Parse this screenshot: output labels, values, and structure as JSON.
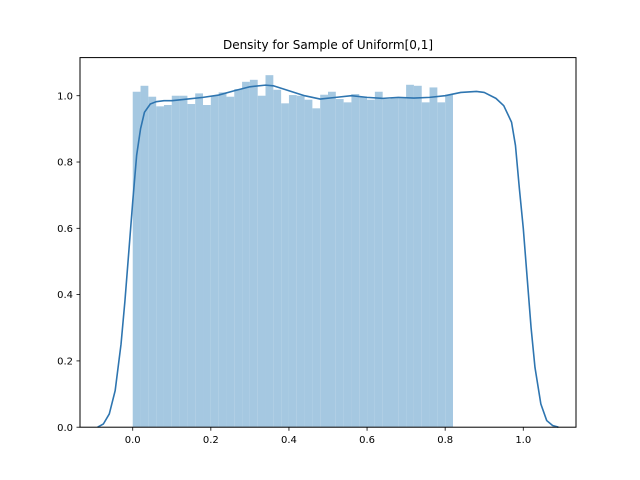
{
  "chart_data": {
    "type": "bar",
    "title": "Density for Sample of Uniform[0,1]",
    "xlabel": "",
    "ylabel": "",
    "xlim": [
      -0.135,
      1.135
    ],
    "ylim": [
      0,
      1.115
    ],
    "xticks": [
      0.0,
      0.2,
      0.4,
      0.6,
      0.8,
      1.0
    ],
    "xtick_labels": [
      "0.0",
      "0.2",
      "0.4",
      "0.6",
      "0.8",
      "1.0"
    ],
    "yticks": [
      0.0,
      0.2,
      0.4,
      0.6,
      0.8,
      1.0
    ],
    "ytick_labels": [
      "0.0",
      "0.2",
      "0.4",
      "0.6",
      "0.8",
      "1.0"
    ],
    "grid": false,
    "legend": "none",
    "histogram": {
      "bin_start": 0.0,
      "bin_width": 0.02,
      "color": "#a5c8e1",
      "values": [
        1.012,
        1.03,
        0.997,
        0.968,
        0.972,
        1.0,
        1.0,
        0.975,
        1.007,
        0.972,
        1.0,
        1.01,
        0.997,
        1.02,
        1.042,
        1.048,
        1.0,
        1.062,
        1.018,
        0.977,
        1.002,
        1.0,
        0.988,
        0.962,
        1.003,
        1.012,
        0.99,
        0.98,
        1.005,
        0.997,
        0.988,
        1.012,
        0.99,
        0.995,
        0.995,
        1.033,
        1.03,
        0.98,
        1.025,
        0.98,
        1.003
      ]
    },
    "kde": {
      "color": "#2e75b0",
      "x": [
        -0.09,
        -0.075,
        -0.06,
        -0.045,
        -0.03,
        -0.02,
        -0.01,
        0.0,
        0.01,
        0.02,
        0.03,
        0.045,
        0.06,
        0.08,
        0.1,
        0.14,
        0.18,
        0.22,
        0.26,
        0.3,
        0.34,
        0.36,
        0.4,
        0.44,
        0.48,
        0.52,
        0.56,
        0.6,
        0.64,
        0.68,
        0.72,
        0.76,
        0.8,
        0.84,
        0.88,
        0.9,
        0.93,
        0.95,
        0.97,
        0.98,
        0.99,
        1.0,
        1.01,
        1.02,
        1.03,
        1.045,
        1.06,
        1.075,
        1.09
      ],
      "y": [
        0.0,
        0.01,
        0.04,
        0.11,
        0.25,
        0.38,
        0.53,
        0.68,
        0.82,
        0.9,
        0.95,
        0.975,
        0.982,
        0.985,
        0.985,
        0.99,
        0.995,
        1.002,
        1.015,
        1.027,
        1.032,
        1.03,
        1.015,
        1.0,
        0.99,
        0.995,
        1.0,
        0.995,
        0.992,
        0.995,
        0.993,
        0.995,
        1.0,
        1.01,
        1.013,
        1.01,
        0.992,
        0.97,
        0.92,
        0.85,
        0.72,
        0.6,
        0.45,
        0.3,
        0.18,
        0.07,
        0.02,
        0.005,
        0.0
      ]
    }
  }
}
